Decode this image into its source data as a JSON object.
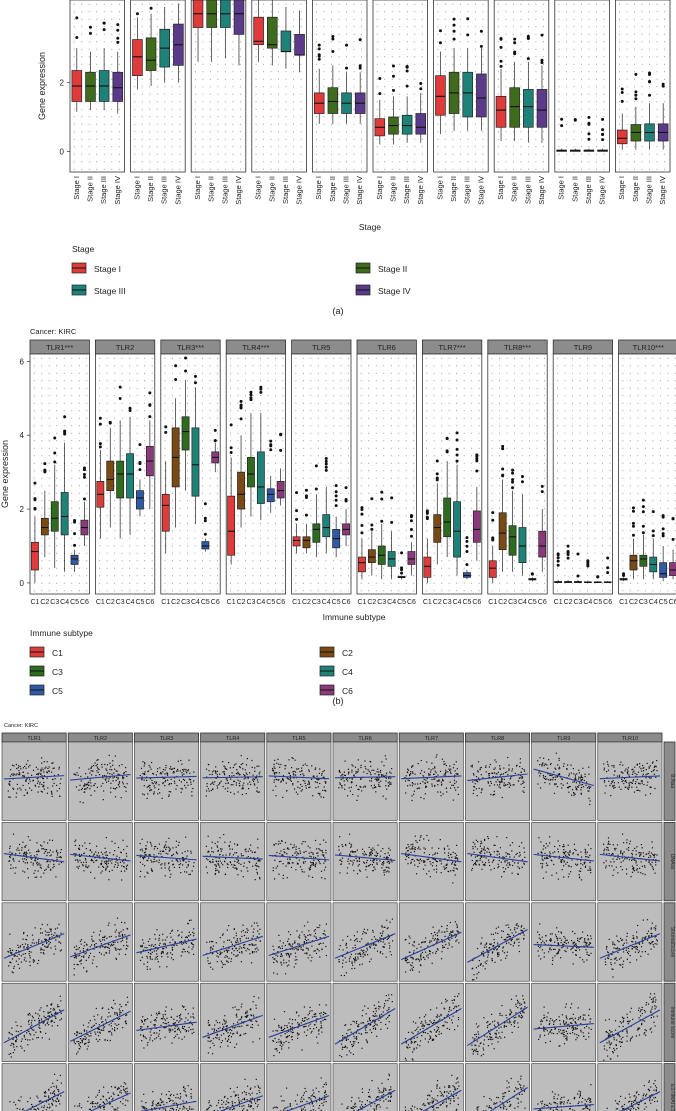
{
  "chart_data": [
    {
      "type": "box",
      "part_label": "(a)",
      "ylabel": "Gene expression",
      "xlabel": "Stage",
      "y_ticks": [
        0,
        2
      ],
      "ylim": [
        -0.6,
        4.4
      ],
      "categories": [
        "Stage I",
        "Stage II",
        "Stage III",
        "Stage IV"
      ],
      "legend_title": "Stage",
      "legend": [
        {
          "name": "Stage I",
          "color": "#e03b3b"
        },
        {
          "name": "Stage II",
          "color": "#3f6b1c"
        },
        {
          "name": "Stage III",
          "color": "#1f8278"
        },
        {
          "name": "Stage IV",
          "color": "#5b3a8a"
        }
      ],
      "panels": [
        {
          "boxes": [
            [
              1.15,
              1.45,
              1.9,
              2.35,
              3.0
            ],
            [
              1.2,
              1.45,
              1.9,
              2.3,
              2.9
            ],
            [
              1.2,
              1.45,
              1.9,
              2.35,
              3.0
            ],
            [
              1.1,
              1.45,
              1.85,
              2.3,
              2.9
            ]
          ]
        },
        {
          "boxes": [
            [
              1.8,
              2.2,
              2.75,
              3.25,
              3.9
            ],
            [
              1.9,
              2.35,
              2.65,
              3.3,
              4.0
            ],
            [
              2.0,
              2.45,
              3.0,
              3.55,
              4.2
            ],
            [
              2.0,
              2.5,
              3.1,
              3.7,
              4.3
            ]
          ]
        },
        {
          "boxes": [
            [
              2.6,
              3.6,
              4.0,
              4.4,
              4.4
            ],
            [
              2.6,
              3.6,
              4.0,
              4.4,
              4.4
            ],
            [
              2.7,
              3.6,
              4.0,
              4.4,
              4.4
            ],
            [
              2.5,
              3.4,
              4.0,
              4.4,
              4.4
            ]
          ]
        },
        {
          "boxes": [
            [
              2.6,
              3.1,
              3.2,
              3.9,
              4.4
            ],
            [
              2.5,
              3.0,
              3.1,
              3.9,
              4.4
            ],
            [
              2.4,
              2.9,
              2.9,
              3.5,
              4.2
            ],
            [
              2.3,
              2.8,
              2.8,
              3.4,
              4.1
            ]
          ]
        },
        {
          "boxes": [
            [
              0.8,
              1.1,
              1.4,
              1.7,
              2.4
            ],
            [
              0.8,
              1.1,
              1.45,
              1.85,
              2.5
            ],
            [
              0.8,
              1.1,
              1.4,
              1.7,
              2.3
            ],
            [
              0.8,
              1.1,
              1.4,
              1.7,
              2.3
            ]
          ]
        },
        {
          "boxes": [
            [
              0.2,
              0.45,
              0.7,
              0.95,
              1.5
            ],
            [
              0.2,
              0.5,
              0.75,
              1.0,
              1.6
            ],
            [
              0.25,
              0.5,
              0.75,
              1.05,
              1.6
            ],
            [
              0.25,
              0.5,
              0.7,
              1.1,
              1.7
            ]
          ]
        },
        {
          "boxes": [
            [
              0.5,
              1.05,
              1.6,
              2.2,
              2.9
            ],
            [
              0.6,
              1.1,
              1.7,
              2.3,
              3.0
            ],
            [
              0.6,
              1.0,
              1.7,
              2.3,
              3.0
            ],
            [
              0.6,
              1.0,
              1.55,
              2.25,
              3.0
            ]
          ]
        },
        {
          "boxes": [
            [
              0.3,
              0.7,
              1.2,
              1.6,
              2.4
            ],
            [
              0.3,
              0.7,
              1.3,
              1.85,
              2.6
            ],
            [
              0.25,
              0.7,
              1.3,
              1.8,
              2.6
            ],
            [
              0.25,
              0.7,
              1.2,
              1.8,
              2.5
            ]
          ]
        },
        {
          "boxes": [
            [
              0.0,
              0.0,
              0.02,
              0.04,
              0.08
            ],
            [
              0.0,
              0.0,
              0.02,
              0.04,
              0.08
            ],
            [
              0.0,
              0.0,
              0.02,
              0.04,
              0.08
            ],
            [
              0.0,
              0.0,
              0.02,
              0.04,
              0.08
            ]
          ]
        },
        {
          "boxes": [
            [
              0.05,
              0.22,
              0.38,
              0.62,
              1.1
            ],
            [
              0.05,
              0.3,
              0.55,
              0.78,
              1.3
            ],
            [
              0.05,
              0.3,
              0.55,
              0.8,
              1.4
            ],
            [
              0.05,
              0.3,
              0.55,
              0.8,
              1.4
            ]
          ]
        }
      ]
    },
    {
      "type": "box",
      "part_label": "(b)",
      "subtitle": "Cancer: KIRC",
      "ylabel": "Gene expression",
      "xlabel": "Immune subtype",
      "y_ticks": [
        0,
        2,
        4,
        6
      ],
      "ylim": [
        -0.3,
        6.2
      ],
      "categories": [
        "C1",
        "C2",
        "C3",
        "C4",
        "C5",
        "C6"
      ],
      "legend_title": "Immune subtype",
      "legend": [
        {
          "name": "C1",
          "color": "#e03b3b"
        },
        {
          "name": "C2",
          "color": "#7a4a14"
        },
        {
          "name": "C3",
          "color": "#2e6b1f"
        },
        {
          "name": "C4",
          "color": "#1f8278"
        },
        {
          "name": "C5",
          "color": "#2f5aa6"
        },
        {
          "name": "C6",
          "color": "#8a3a7a"
        }
      ],
      "panels": [
        {
          "title": "TLR1***",
          "boxes": [
            [
              0.0,
              0.35,
              0.85,
              1.1,
              1.8
            ],
            [
              0.7,
              1.3,
              1.5,
              1.75,
              2.5
            ],
            [
              0.4,
              1.4,
              1.75,
              2.2,
              3.2
            ],
            [
              0.3,
              1.3,
              1.8,
              2.45,
              3.8
            ],
            [
              0.3,
              0.5,
              0.65,
              0.75,
              0.9
            ],
            [
              1.0,
              1.3,
              1.5,
              1.7,
              2.2
            ]
          ]
        },
        {
          "title": "TLR2",
          "boxes": [
            [
              1.2,
              2.05,
              2.4,
              2.75,
              3.6
            ],
            [
              1.5,
              2.5,
              2.8,
              3.3,
              4.2
            ],
            [
              1.2,
              2.3,
              2.95,
              3.3,
              4.4
            ],
            [
              1.3,
              2.3,
              2.95,
              3.5,
              4.5
            ],
            [
              1.8,
              2.0,
              2.3,
              2.5,
              2.8
            ],
            [
              2.0,
              2.9,
              3.3,
              3.7,
              4.4
            ]
          ]
        },
        {
          "title": "TLR3***",
          "boxes": [
            [
              0.8,
              1.4,
              2.1,
              2.4,
              3.3
            ],
            [
              1.5,
              2.6,
              3.4,
              4.2,
              5.0
            ],
            [
              2.5,
              3.6,
              4.1,
              4.5,
              5.5
            ],
            [
              1.6,
              2.35,
              3.2,
              4.2,
              5.3
            ],
            [
              0.85,
              0.92,
              1.0,
              1.12,
              1.2
            ],
            [
              3.0,
              3.25,
              3.4,
              3.55,
              3.8
            ]
          ]
        },
        {
          "title": "TLR4***",
          "boxes": [
            [
              0.5,
              0.75,
              1.4,
              2.35,
              3.4
            ],
            [
              1.5,
              2.0,
              2.4,
              3.0,
              4.0
            ],
            [
              1.8,
              2.6,
              2.95,
              3.4,
              4.6
            ],
            [
              1.7,
              2.15,
              2.6,
              3.55,
              4.6
            ],
            [
              1.9,
              2.2,
              2.4,
              2.55,
              2.9
            ],
            [
              2.1,
              2.3,
              2.5,
              2.75,
              3.1
            ]
          ]
        },
        {
          "title": "TLR5",
          "boxes": [
            [
              0.8,
              1.0,
              1.15,
              1.25,
              1.6
            ],
            [
              0.8,
              0.95,
              1.15,
              1.25,
              1.6
            ],
            [
              0.7,
              1.1,
              1.45,
              1.6,
              2.4
            ],
            [
              0.8,
              1.25,
              1.5,
              1.85,
              2.6
            ],
            [
              0.7,
              0.95,
              1.2,
              1.45,
              1.8
            ],
            [
              1.0,
              1.3,
              1.45,
              1.6,
              2.0
            ]
          ]
        },
        {
          "title": "TLR6",
          "boxes": [
            [
              0.1,
              0.3,
              0.55,
              0.7,
              1.2
            ],
            [
              0.2,
              0.55,
              0.7,
              0.9,
              1.4
            ],
            [
              0.1,
              0.5,
              0.75,
              1.0,
              1.6
            ],
            [
              0.1,
              0.45,
              0.65,
              0.85,
              1.4
            ],
            [
              0.1,
              0.15,
              0.15,
              0.18,
              0.2
            ],
            [
              0.2,
              0.5,
              0.65,
              0.85,
              1.1
            ]
          ]
        },
        {
          "title": "TLR7***",
          "boxes": [
            [
              0.0,
              0.15,
              0.45,
              0.7,
              1.2
            ],
            [
              0.5,
              1.1,
              1.5,
              1.85,
              2.7
            ],
            [
              0.7,
              1.25,
              1.65,
              2.3,
              3.3
            ],
            [
              0.2,
              0.7,
              1.4,
              2.2,
              3.2
            ],
            [
              0.1,
              0.15,
              0.2,
              0.28,
              0.35
            ],
            [
              0.6,
              1.1,
              1.45,
              1.95,
              2.6
            ]
          ]
        },
        {
          "title": "TLR8***",
          "boxes": [
            [
              0.0,
              0.15,
              0.4,
              0.6,
              1.0
            ],
            [
              0.3,
              0.9,
              1.35,
              1.9,
              2.8
            ],
            [
              0.3,
              0.75,
              1.25,
              1.55,
              2.5
            ],
            [
              0.2,
              0.55,
              1.0,
              1.5,
              2.4
            ],
            [
              0.05,
              0.08,
              0.1,
              0.12,
              0.15
            ],
            [
              0.3,
              0.7,
              1.0,
              1.4,
              2.0
            ]
          ]
        },
        {
          "title": "TLR9",
          "boxes": [
            [
              0.0,
              0.01,
              0.02,
              0.04,
              0.08
            ],
            [
              0.0,
              0.01,
              0.02,
              0.04,
              0.08
            ],
            [
              0.0,
              0.01,
              0.02,
              0.04,
              0.08
            ],
            [
              0.0,
              0.01,
              0.02,
              0.03,
              0.06
            ],
            [
              0.0,
              0.01,
              0.02,
              0.03,
              0.05
            ],
            [
              0.0,
              0.01,
              0.02,
              0.03,
              0.05
            ]
          ]
        },
        {
          "title": "TLR10***",
          "boxes": [
            [
              0.05,
              0.08,
              0.1,
              0.12,
              0.15
            ],
            [
              0.1,
              0.35,
              0.6,
              0.75,
              1.2
            ],
            [
              0.1,
              0.45,
              0.65,
              0.75,
              1.3
            ],
            [
              0.1,
              0.3,
              0.5,
              0.7,
              1.2
            ],
            [
              0.05,
              0.15,
              0.25,
              0.55,
              1.0
            ],
            [
              0.1,
              0.2,
              0.35,
              0.55,
              0.9
            ]
          ]
        }
      ]
    },
    {
      "type": "scatter",
      "subtitle": "Cancer: KIRC",
      "columns": [
        "TLR1",
        "TLR2",
        "TLR3",
        "TLR4",
        "TLR5",
        "TLR6",
        "TLR7",
        "TLR8",
        "TLR9",
        "TLR10"
      ],
      "rows": [
        "B.Naa",
        "DNAss",
        "StromalScore",
        "Immune score",
        "ESTIMATEScore"
      ],
      "slopes": [
        [
          0.06,
          0.1,
          0.03,
          0.02,
          -0.05,
          0.02,
          0.05,
          0.12,
          -0.3,
          0.05
        ],
        [
          -0.15,
          -0.12,
          -0.08,
          -0.05,
          -0.08,
          -0.1,
          -0.15,
          -0.15,
          -0.12,
          -0.12
        ],
        [
          0.45,
          0.4,
          0.25,
          0.35,
          0.35,
          0.45,
          0.5,
          0.6,
          -0.05,
          0.45
        ],
        [
          0.6,
          0.55,
          0.15,
          0.4,
          0.4,
          0.65,
          0.65,
          0.7,
          0.1,
          0.6
        ],
        [
          0.55,
          0.5,
          0.2,
          0.4,
          0.4,
          0.6,
          0.6,
          0.7,
          0.08,
          0.55
        ]
      ]
    }
  ]
}
